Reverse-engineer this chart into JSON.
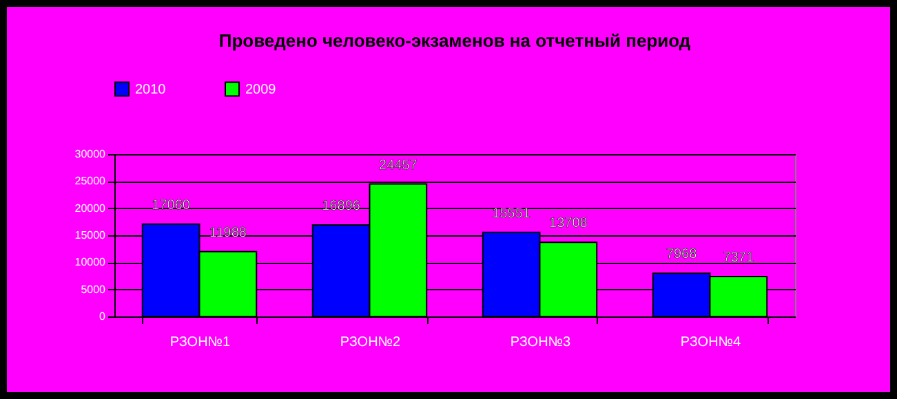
{
  "chart_data": {
    "type": "bar",
    "title": "Проведено человеко-экзаменов на отчетный период",
    "categories": [
      "РЗОН№1",
      "РЗОН№2",
      "РЗОН№3",
      "РЗОН№4"
    ],
    "series": [
      {
        "name": "2010",
        "color": "#0000ff",
        "values": [
          17060,
          16896,
          15551,
          7968
        ]
      },
      {
        "name": "2009",
        "color": "#00ff00",
        "values": [
          11988,
          24457,
          13708,
          7371
        ]
      }
    ],
    "ylim": [
      0,
      30000
    ],
    "yticks": [
      0,
      5000,
      10000,
      15000,
      20000,
      25000,
      30000
    ],
    "grid": "y",
    "legend": "top",
    "data_labels": true
  }
}
